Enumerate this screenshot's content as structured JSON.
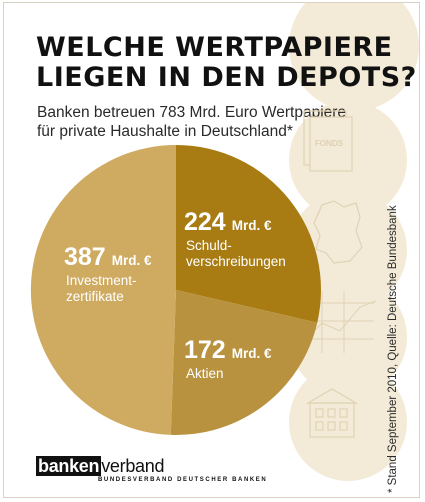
{
  "title_line1": "WELCHE WERTPAPIERE",
  "title_line2": "LIEGEN IN DEN DEPOTS?",
  "subtitle": "Banken betreuen 783 Mrd. Euro Wertpapiere für private Haushalte in Deutschland*",
  "footnote": "* Stand September 2010, Quelle: Deutsche Bundesbank",
  "background_icons": {
    "fonds_label": "FONDS",
    "icons": [
      "document-icon",
      "germany-map-icon",
      "chart-grid-icon",
      "building-icon"
    ]
  },
  "logo": {
    "part1": "banken",
    "part2": "verband",
    "tagline": "BUNDESVERBAND DEUTSCHER BANKEN"
  },
  "colors": {
    "investment": "#cfaa61",
    "bonds": "#a87c12",
    "stocks": "#b9923f",
    "background_circles": "#f3ebd8"
  },
  "chart_data": {
    "type": "pie",
    "unit": "Mrd. €",
    "total": 783,
    "slices": [
      {
        "value": 387,
        "unit": "Mrd. €",
        "label": "Investment-\nzertifikate",
        "label_lines": [
          "Investment-",
          "zertifikate"
        ],
        "color": "#cfaa61"
      },
      {
        "value": 224,
        "unit": "Mrd. €",
        "label": "Schuld-\nverschreibungen",
        "label_lines": [
          "Schuld-",
          "verschreibungen"
        ],
        "color": "#a87c12"
      },
      {
        "value": 172,
        "unit": "Mrd. €",
        "label": "Aktien",
        "label_lines": [
          "Aktien"
        ],
        "color": "#b9923f"
      }
    ]
  }
}
